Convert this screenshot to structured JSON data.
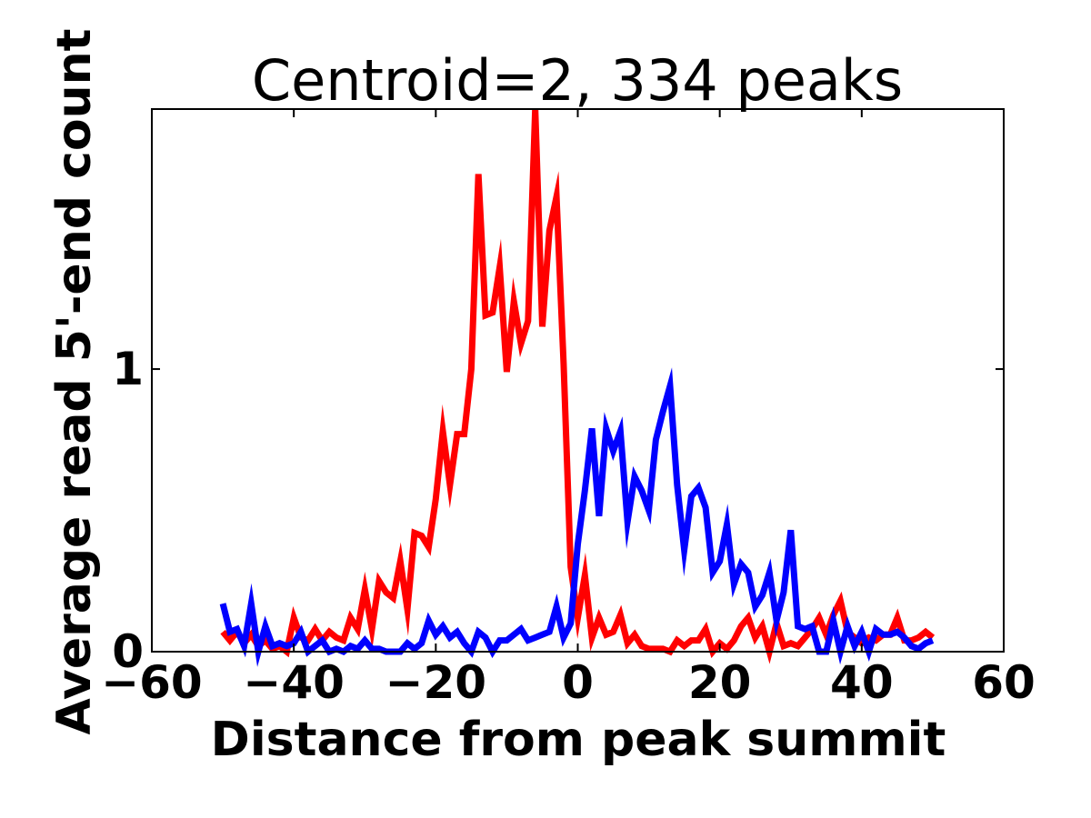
{
  "chart_data": {
    "type": "line",
    "title": "Centroid=2, 334 peaks",
    "xlabel": "Distance from peak summit",
    "ylabel": "Average read 5'-end count",
    "xlim": [
      -60,
      60
    ],
    "ylim": [
      0,
      1.92
    ],
    "xticks": [
      -60,
      -40,
      -20,
      0,
      20,
      40,
      60
    ],
    "xtick_labels": [
      "−60",
      "−40",
      "−20",
      "0",
      "20",
      "40",
      "60"
    ],
    "yticks": [
      0,
      1
    ],
    "ytick_labels": [
      "0",
      "1"
    ],
    "grid": false,
    "legend": "none",
    "x": [
      -50,
      -49,
      -48,
      -47,
      -46,
      -45,
      -44,
      -43,
      -42,
      -41,
      -40,
      -39,
      -38,
      -37,
      -36,
      -35,
      -34,
      -33,
      -32,
      -31,
      -30,
      -29,
      -28,
      -27,
      -26,
      -25,
      -24,
      -23,
      -22,
      -21,
      -20,
      -19,
      -18,
      -17,
      -16,
      -15,
      -14,
      -13,
      -12,
      -11,
      -10,
      -9,
      -8,
      -7,
      -6,
      -5,
      -4,
      -3,
      -2,
      -1,
      0,
      1,
      2,
      3,
      4,
      5,
      6,
      7,
      8,
      9,
      10,
      11,
      12,
      13,
      14,
      15,
      16,
      17,
      18,
      19,
      20,
      21,
      22,
      23,
      24,
      25,
      26,
      27,
      28,
      29,
      30,
      31,
      32,
      33,
      34,
      35,
      36,
      37,
      38,
      39,
      40,
      41,
      42,
      43,
      44,
      45,
      46,
      47,
      48,
      49,
      50
    ],
    "series": [
      {
        "color": "#ff0000",
        "values": [
          0.07,
          0.04,
          0.07,
          0.03,
          0.06,
          0.02,
          0.04,
          0.01,
          0.02,
          0.0,
          0.12,
          0.05,
          0.04,
          0.08,
          0.04,
          0.07,
          0.05,
          0.04,
          0.12,
          0.08,
          0.22,
          0.08,
          0.25,
          0.21,
          0.19,
          0.32,
          0.15,
          0.42,
          0.41,
          0.37,
          0.54,
          0.78,
          0.59,
          0.77,
          0.77,
          1.0,
          1.69,
          1.19,
          1.2,
          1.36,
          0.99,
          1.24,
          1.09,
          1.17,
          1.92,
          1.15,
          1.49,
          1.61,
          1.02,
          0.3,
          0.12,
          0.27,
          0.05,
          0.12,
          0.06,
          0.07,
          0.13,
          0.03,
          0.06,
          0.02,
          0.01,
          0.01,
          0.01,
          0.0,
          0.04,
          0.02,
          0.04,
          0.04,
          0.08,
          0.0,
          0.03,
          0.01,
          0.04,
          0.09,
          0.12,
          0.05,
          0.09,
          0.0,
          0.1,
          0.02,
          0.03,
          0.02,
          0.05,
          0.08,
          0.12,
          0.06,
          0.13,
          0.18,
          0.07,
          0.05,
          0.03,
          0.05,
          0.04,
          0.06,
          0.06,
          0.12,
          0.04,
          0.04,
          0.05,
          0.07,
          0.05
        ]
      },
      {
        "color": "#0000ff",
        "values": [
          0.17,
          0.07,
          0.08,
          0.02,
          0.17,
          0.0,
          0.09,
          0.02,
          0.03,
          0.02,
          0.03,
          0.07,
          0.0,
          0.02,
          0.04,
          0.0,
          0.01,
          0.0,
          0.02,
          0.01,
          0.04,
          0.01,
          0.01,
          0.0,
          0.0,
          0.0,
          0.03,
          0.01,
          0.03,
          0.11,
          0.06,
          0.09,
          0.05,
          0.07,
          0.03,
          0.0,
          0.07,
          0.05,
          0.0,
          0.04,
          0.04,
          0.06,
          0.08,
          0.04,
          0.05,
          0.06,
          0.07,
          0.16,
          0.05,
          0.1,
          0.38,
          0.57,
          0.79,
          0.48,
          0.79,
          0.71,
          0.78,
          0.46,
          0.62,
          0.57,
          0.5,
          0.75,
          0.85,
          0.94,
          0.59,
          0.36,
          0.55,
          0.58,
          0.51,
          0.28,
          0.32,
          0.45,
          0.24,
          0.31,
          0.28,
          0.16,
          0.2,
          0.28,
          0.11,
          0.21,
          0.43,
          0.09,
          0.08,
          0.09,
          0.0,
          0.0,
          0.11,
          0.0,
          0.09,
          0.02,
          0.07,
          0.0,
          0.08,
          0.06,
          0.06,
          0.07,
          0.05,
          0.02,
          0.01,
          0.03,
          0.04
        ]
      }
    ]
  }
}
